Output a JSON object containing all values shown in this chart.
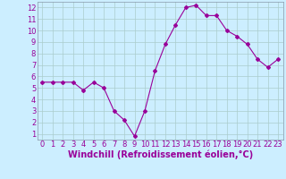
{
  "x": [
    0,
    1,
    2,
    3,
    4,
    5,
    6,
    7,
    8,
    9,
    10,
    11,
    12,
    13,
    14,
    15,
    16,
    17,
    18,
    19,
    20,
    21,
    22,
    23
  ],
  "y": [
    5.5,
    5.5,
    5.5,
    5.5,
    4.8,
    5.5,
    5.0,
    3.0,
    2.2,
    0.8,
    3.0,
    6.5,
    8.8,
    10.5,
    12.0,
    12.2,
    11.3,
    11.3,
    10.0,
    9.5,
    8.8,
    7.5,
    6.8,
    7.5
  ],
  "line_color": "#990099",
  "marker": "D",
  "marker_size": 2,
  "bg_color": "#cceeff",
  "grid_color": "#aacccc",
  "xlabel": "Windchill (Refroidissement éolien,°C)",
  "xlabel_color": "#990099",
  "xlabel_fontsize": 7,
  "tick_color": "#990099",
  "tick_fontsize": 6,
  "ylim": [
    0.5,
    12.5
  ],
  "xlim": [
    -0.5,
    23.5
  ],
  "yticks": [
    1,
    2,
    3,
    4,
    5,
    6,
    7,
    8,
    9,
    10,
    11,
    12
  ],
  "xticks": [
    0,
    1,
    2,
    3,
    4,
    5,
    6,
    7,
    8,
    9,
    10,
    11,
    12,
    13,
    14,
    15,
    16,
    17,
    18,
    19,
    20,
    21,
    22,
    23
  ]
}
